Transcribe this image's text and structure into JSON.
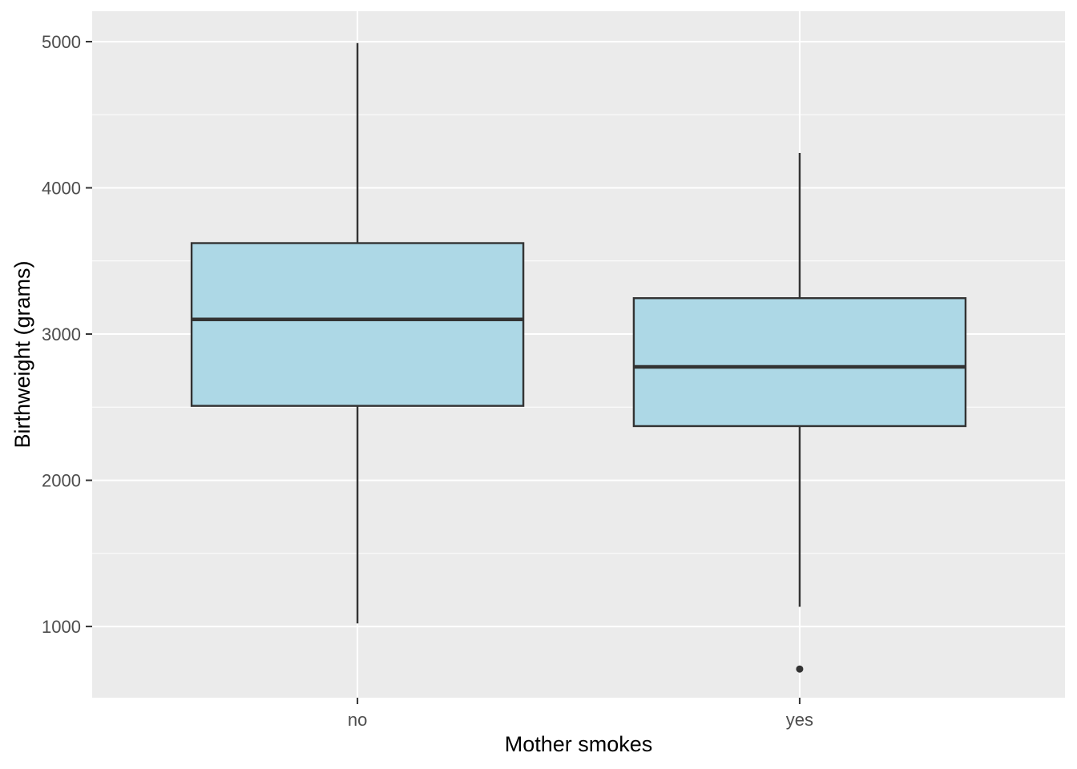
{
  "chart_data": {
    "type": "boxplot",
    "title": "",
    "xlabel": "Mother smokes",
    "ylabel": "Birthweight (grams)",
    "categories": [
      "no",
      "yes"
    ],
    "series": [
      {
        "category": "no",
        "lower_whisker": 1021,
        "q1": 2509,
        "median": 3100,
        "q3": 3622,
        "upper_whisker": 4990,
        "outliers": []
      },
      {
        "category": "yes",
        "lower_whisker": 1135,
        "q1": 2370.5,
        "median": 2775.5,
        "q3": 3245.5,
        "upper_whisker": 4238,
        "outliers": [
          709
        ]
      }
    ],
    "y_ticks": [
      1000,
      2000,
      3000,
      4000,
      5000
    ],
    "y_minor_gridlines": [
      1500,
      2500,
      3500,
      4500
    ],
    "ylim": [
      513,
      5208
    ],
    "grid": true,
    "legend_position": "none",
    "style": {
      "panel_background": "#EBEBEB",
      "gridline_color": "#FFFFFF",
      "box_fill": "#ADD8E6",
      "box_border": "#333333",
      "median_color": "#333333",
      "whisker_color": "#333333",
      "outlier_color": "#333333",
      "tick_mark_color": "#333333",
      "tick_label_color": "#4D4D4D",
      "axis_title_color": "#000000"
    }
  }
}
